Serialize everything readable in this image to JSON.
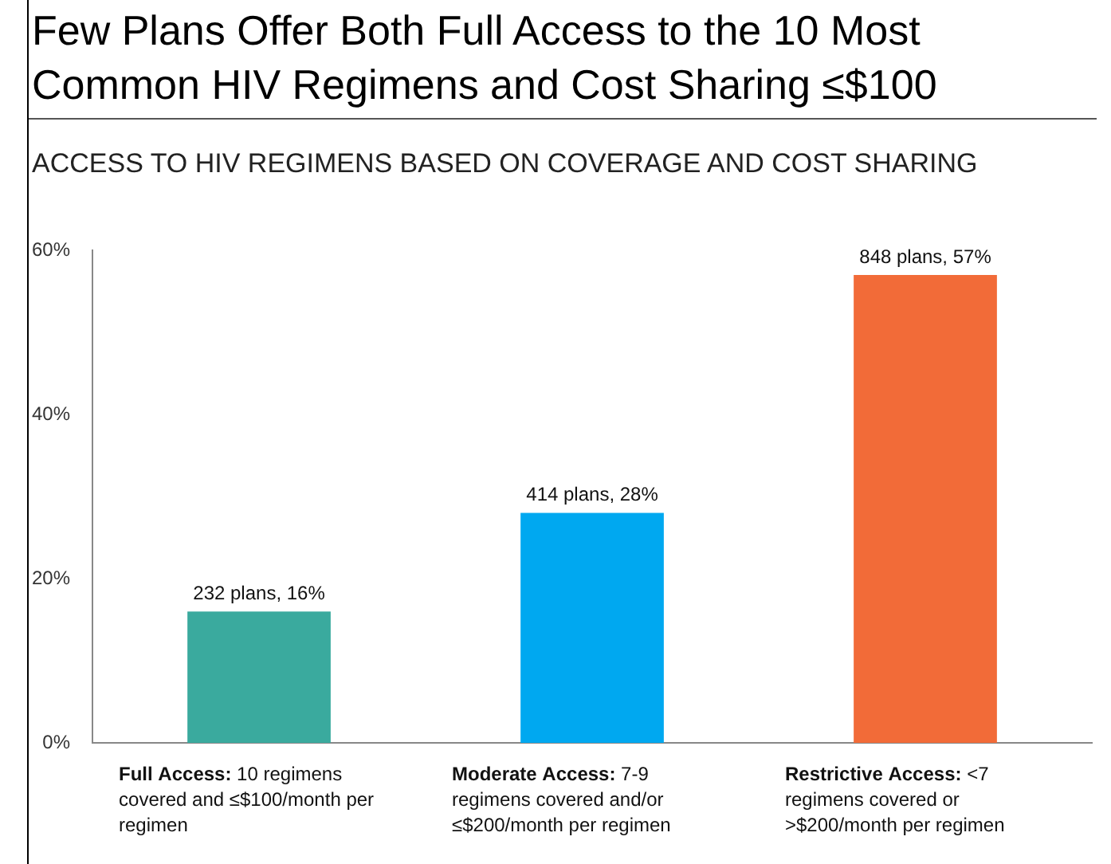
{
  "chart_data": {
    "type": "bar",
    "title": "Few Plans Offer Both Full Access to the 10 Most Common HIV Regimens and Cost Sharing ≤$100",
    "subtitle": "ACCESS TO HIV REGIMENS BASED ON COVERAGE AND COST SHARING",
    "categories": [
      "Full Access: 10 regimens covered and ≤$100/month per regimen",
      "Moderate Access: 7-9 regimens covered and/or ≤$200/month per regimen",
      "Restrictive Access: <7 regimens covered or >$200/month per regimen"
    ],
    "values": [
      16,
      28,
      57
    ],
    "colors": [
      "#3aaa9e",
      "#00a8f0",
      "#f26b38"
    ],
    "value_labels": [
      "232 plans, 16%",
      "414 plans, 28%",
      "848 plans, 57%"
    ],
    "ylim": [
      0,
      60
    ],
    "yticks": [
      {
        "value": 0,
        "label": "0%"
      },
      {
        "value": 20,
        "label": "20%"
      },
      {
        "value": 40,
        "label": "40%"
      },
      {
        "value": 60,
        "label": "60%"
      }
    ],
    "grid": false,
    "legend": false
  }
}
